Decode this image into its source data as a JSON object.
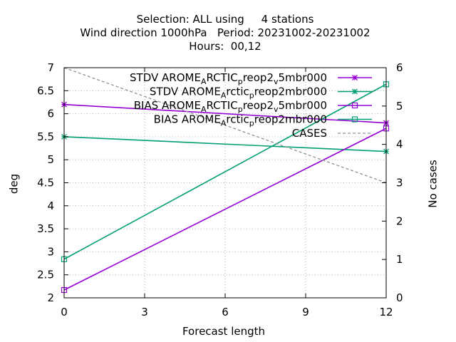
{
  "chart_data": {
    "type": "line",
    "title_lines": [
      "Selection: ALL using     4 stations",
      "Wind direction 1000hPa   Period: 20231002-20231002",
      "Hours:  00,12"
    ],
    "xlabel": "Forecast length",
    "ylabel": "deg",
    "y2label": "No cases",
    "xlim": [
      0,
      12
    ],
    "ylim": [
      2,
      7
    ],
    "y2lim": [
      0,
      6
    ],
    "xticks": [
      0,
      3,
      6,
      9,
      12
    ],
    "yticks": [
      2,
      2.5,
      3,
      3.5,
      4,
      4.5,
      5,
      5.5,
      6,
      6.5,
      7
    ],
    "y2ticks": [
      0,
      1,
      2,
      3,
      4,
      5,
      6
    ],
    "grid": true,
    "legend_position": "top-right",
    "series": [
      {
        "legend": [
          {
            "t": "STDV AROME"
          },
          {
            "t": "A",
            "sub": true
          },
          {
            "t": "RCTIC"
          },
          {
            "t": "p",
            "sub": true
          },
          {
            "t": "reop2"
          },
          {
            "t": "v",
            "sub": true
          },
          {
            "t": "5mbr000"
          }
        ],
        "color": "#9400d3",
        "marker": "star",
        "dash": false,
        "axis": "y",
        "x": [
          0,
          12
        ],
        "values": [
          6.2,
          5.8
        ]
      },
      {
        "legend": [
          {
            "t": "STDV AROME"
          },
          {
            "t": "A",
            "sub": true
          },
          {
            "t": "rctic"
          },
          {
            "t": "p",
            "sub": true
          },
          {
            "t": "reop2mbr000"
          }
        ],
        "color": "#009e73",
        "marker": "star",
        "dash": false,
        "axis": "y",
        "x": [
          0,
          12
        ],
        "values": [
          5.5,
          5.18
        ]
      },
      {
        "legend": [
          {
            "t": "BIAS AROME"
          },
          {
            "t": "A",
            "sub": true
          },
          {
            "t": "RCTIC"
          },
          {
            "t": "p",
            "sub": true
          },
          {
            "t": "reop2"
          },
          {
            "t": "v",
            "sub": true
          },
          {
            "t": "5mbr000"
          }
        ],
        "color": "#9400d3",
        "marker": "square",
        "dash": false,
        "axis": "y",
        "x": [
          0,
          12
        ],
        "values": [
          2.17,
          5.68
        ]
      },
      {
        "legend": [
          {
            "t": "BIAS AROME"
          },
          {
            "t": "A",
            "sub": true
          },
          {
            "t": "rctic"
          },
          {
            "t": "p",
            "sub": true
          },
          {
            "t": "reop2mbr000"
          }
        ],
        "color": "#009e73",
        "marker": "square",
        "dash": false,
        "axis": "y",
        "x": [
          0,
          12
        ],
        "values": [
          2.84,
          6.64
        ]
      },
      {
        "legend": [
          {
            "t": "CASES"
          }
        ],
        "color": "#909090",
        "marker": "none",
        "dash": true,
        "axis": "y2",
        "x": [
          0,
          12
        ],
        "values": [
          6,
          3
        ]
      }
    ]
  }
}
